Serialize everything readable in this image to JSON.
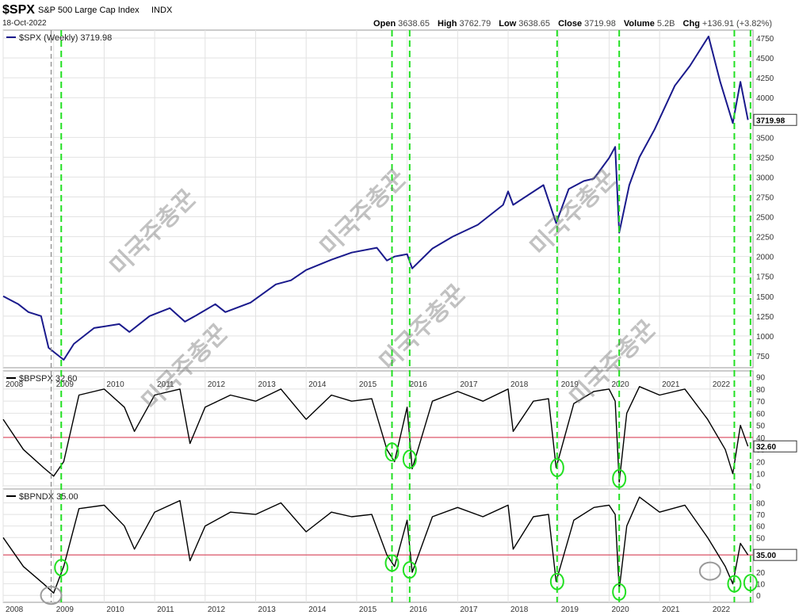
{
  "header": {
    "symbol": "$SPX",
    "name": "S&P 500 Large Cap Index",
    "exchange": "INDX",
    "date": "18-Oct-2022",
    "open_label": "Open",
    "open": "3638.65",
    "high_label": "High",
    "high": "3762.79",
    "low_label": "Low",
    "low": "3638.65",
    "close_label": "Close",
    "close": "3719.98",
    "volume_label": "Volume",
    "volume": "5.2B",
    "chg_label": "Chg",
    "chg": "+136.91 (+3.82%)"
  },
  "watermark": "미국주총꾼",
  "colors": {
    "price": "#1a1a8c",
    "breadth": "#000000",
    "threshold": "#d9455a",
    "marker": "#22e022",
    "gray_marker": "#9a9a9a"
  },
  "chart_data": [
    {
      "type": "line",
      "legend": "$SPX (Weekly) 3719.98",
      "last_value_label": "3719.98",
      "ylim": [
        600,
        4850
      ],
      "y_ticks": [
        750,
        1000,
        1250,
        1500,
        1750,
        2000,
        2250,
        2500,
        2750,
        3000,
        3250,
        3500,
        4000,
        4250,
        4500,
        4750
      ],
      "x_ticks": [
        "2008",
        "2009",
        "2010",
        "2011",
        "2012",
        "2013",
        "2014",
        "2015",
        "2016",
        "2017",
        "2018",
        "2019",
        "2020",
        "2021",
        "2022"
      ],
      "series": [
        {
          "x": [
            2008.0,
            2008.3,
            2008.5,
            2008.75,
            2008.9,
            2009.2,
            2009.4,
            2009.8,
            2010.3,
            2010.5,
            2010.9,
            2011.3,
            2011.6,
            2011.8,
            2012.2,
            2012.4,
            2012.9,
            2013.4,
            2013.7,
            2014.0,
            2014.5,
            2014.9,
            2015.4,
            2015.6,
            2015.75,
            2016.0,
            2016.1,
            2016.5,
            2016.9,
            2017.4,
            2017.9,
            2018.0,
            2018.1,
            2018.7,
            2018.95,
            2019.2,
            2019.5,
            2019.7,
            2020.0,
            2020.12,
            2020.2,
            2020.4,
            2020.6,
            2020.9,
            2021.3,
            2021.6,
            2021.97,
            2022.2,
            2022.45,
            2022.6,
            2022.75
          ],
          "y": [
            1500,
            1400,
            1300,
            1250,
            850,
            700,
            900,
            1100,
            1150,
            1050,
            1250,
            1350,
            1180,
            1250,
            1400,
            1300,
            1420,
            1650,
            1700,
            1830,
            1960,
            2050,
            2110,
            1950,
            2000,
            2030,
            1850,
            2100,
            2250,
            2400,
            2650,
            2820,
            2650,
            2900,
            2420,
            2850,
            2950,
            2980,
            3240,
            3380,
            2300,
            2900,
            3250,
            3600,
            4150,
            4400,
            4770,
            4200,
            3680,
            4200,
            3719.98
          ]
        }
      ]
    },
    {
      "type": "line",
      "legend": "$BPSPX 32.60",
      "last_value_label": "32.60",
      "ylim": [
        0,
        95
      ],
      "threshold": 40,
      "y_ticks": [
        0,
        10,
        20,
        30,
        40,
        50,
        60,
        70,
        80,
        90
      ],
      "series": [
        {
          "x": [
            2008.0,
            2008.4,
            2008.8,
            2009.0,
            2009.2,
            2009.5,
            2010.0,
            2010.4,
            2010.6,
            2011.0,
            2011.5,
            2011.7,
            2012.0,
            2012.5,
            2013.0,
            2013.5,
            2014.0,
            2014.5,
            2014.9,
            2015.3,
            2015.6,
            2015.75,
            2016.0,
            2016.1,
            2016.5,
            2017.0,
            2017.5,
            2018.0,
            2018.1,
            2018.5,
            2018.8,
            2018.95,
            2019.3,
            2019.7,
            2020.0,
            2020.12,
            2020.2,
            2020.35,
            2020.6,
            2021.0,
            2021.5,
            2021.95,
            2022.3,
            2022.45,
            2022.6,
            2022.75
          ],
          "y": [
            55,
            30,
            15,
            8,
            20,
            75,
            80,
            65,
            45,
            75,
            80,
            35,
            65,
            75,
            70,
            80,
            55,
            75,
            70,
            72,
            30,
            20,
            65,
            14,
            70,
            78,
            70,
            80,
            45,
            70,
            72,
            15,
            68,
            78,
            80,
            70,
            3,
            60,
            82,
            75,
            80,
            55,
            30,
            10,
            50,
            32.6
          ]
        }
      ]
    },
    {
      "type": "line",
      "legend": "$BPNDX 35.00",
      "last_value_label": "35.00",
      "ylim": [
        -6,
        92
      ],
      "threshold": 35,
      "y_ticks": [
        0,
        10,
        20,
        35,
        50,
        60,
        70,
        80
      ],
      "series": [
        {
          "x": [
            2008.0,
            2008.4,
            2008.8,
            2009.0,
            2009.2,
            2009.5,
            2010.0,
            2010.4,
            2010.6,
            2011.0,
            2011.5,
            2011.7,
            2012.0,
            2012.5,
            2013.0,
            2013.5,
            2014.0,
            2014.5,
            2014.9,
            2015.3,
            2015.6,
            2015.75,
            2016.0,
            2016.1,
            2016.5,
            2017.0,
            2017.5,
            2018.0,
            2018.1,
            2018.5,
            2018.8,
            2018.95,
            2019.3,
            2019.7,
            2020.0,
            2020.12,
            2020.2,
            2020.35,
            2020.6,
            2021.0,
            2021.5,
            2021.95,
            2022.3,
            2022.45,
            2022.6,
            2022.75
          ],
          "y": [
            50,
            25,
            10,
            2,
            25,
            75,
            78,
            60,
            40,
            72,
            82,
            30,
            60,
            72,
            70,
            80,
            55,
            72,
            68,
            70,
            35,
            25,
            65,
            20,
            68,
            76,
            68,
            78,
            40,
            68,
            70,
            12,
            65,
            76,
            78,
            70,
            5,
            60,
            85,
            72,
            78,
            50,
            25,
            10,
            45,
            35
          ]
        }
      ]
    }
  ],
  "annotations": {
    "signal_years": [
      2009.15,
      2015.7,
      2016.05,
      2018.97,
      2020.2,
      2022.48,
      2022.8
    ],
    "gray_line_year": 2008.95,
    "bpspx_markers": [
      {
        "x": 2015.7,
        "y": 28
      },
      {
        "x": 2016.05,
        "y": 22
      },
      {
        "x": 2018.97,
        "y": 15
      },
      {
        "x": 2020.2,
        "y": 6
      }
    ],
    "bpndx_markers": [
      {
        "x": 2009.15,
        "y": 24
      },
      {
        "x": 2015.7,
        "y": 28
      },
      {
        "x": 2016.05,
        "y": 22
      },
      {
        "x": 2018.97,
        "y": 12
      },
      {
        "x": 2020.2,
        "y": 3
      },
      {
        "x": 2022.48,
        "y": 10
      },
      {
        "x": 2022.8,
        "y": 11
      }
    ],
    "gray_markers": [
      {
        "x": 2008.95,
        "y": 0
      },
      {
        "x": 2022.0,
        "y": 21
      }
    ]
  }
}
